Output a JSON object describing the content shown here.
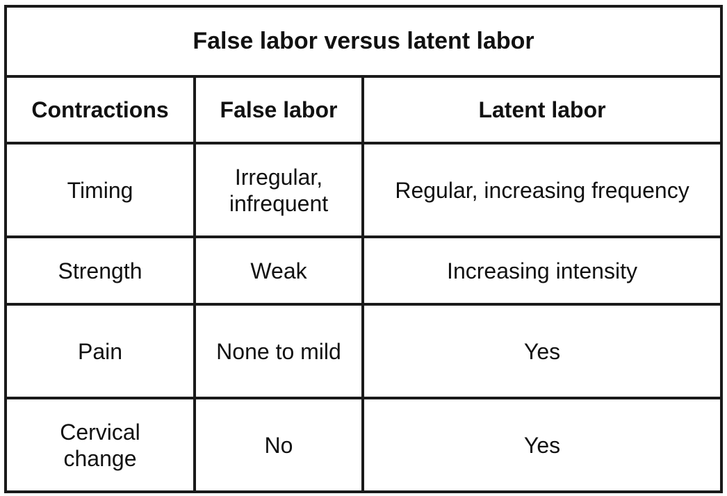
{
  "table": {
    "title": "False labor versus latent labor",
    "headers": [
      "Contractions",
      "False labor",
      "Latent labor"
    ],
    "rows": [
      [
        "Timing",
        "Irregular, infrequent",
        "Regular, increasing frequency"
      ],
      [
        "Strength",
        "Weak",
        "Increasing intensity"
      ],
      [
        "Pain",
        "None to mild",
        "Yes"
      ],
      [
        "Cervical change",
        "No",
        "Yes"
      ]
    ]
  }
}
